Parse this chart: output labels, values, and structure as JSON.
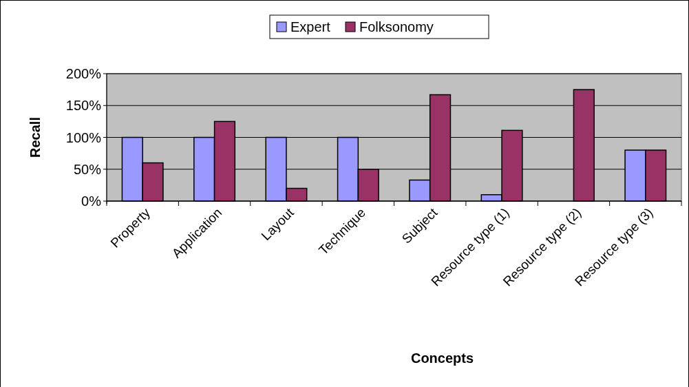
{
  "chart_data": {
    "type": "bar",
    "xlabel": "Concepts",
    "ylabel": "Recall",
    "categories": [
      "Property",
      "Application",
      "Layout",
      "Technique",
      "Subject",
      "Resource type (1)",
      "Resource type (2)",
      "Resource type (3)"
    ],
    "series": [
      {
        "name": "Expert",
        "color": "#9999ff",
        "values": [
          100,
          100,
          100,
          100,
          33,
          10,
          0,
          80
        ]
      },
      {
        "name": "Folksonomy",
        "color": "#993366",
        "values": [
          60,
          125,
          20,
          50,
          167,
          111,
          175,
          80
        ]
      }
    ],
    "ylim": [
      0,
      200
    ],
    "yticks": [
      {
        "value": 0,
        "label": "0%"
      },
      {
        "value": 50,
        "label": "50%"
      },
      {
        "value": 100,
        "label": "100%"
      },
      {
        "value": 150,
        "label": "150%"
      },
      {
        "value": 200,
        "label": "200%"
      }
    ],
    "grid": "y",
    "legend": "top"
  }
}
